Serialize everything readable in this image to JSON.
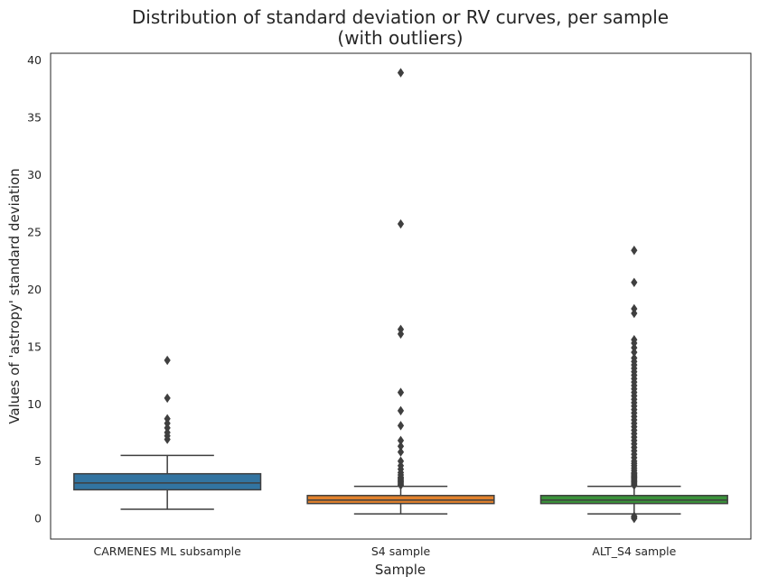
{
  "chart_data": {
    "type": "box",
    "title_line1": "Distribution of standard deviation or RV curves, per sample",
    "title_line2": "(with outliers)",
    "xlabel": "Sample",
    "ylabel": "Values of 'astropy' standard deviation",
    "ylim": [
      -1.8,
      40.6
    ],
    "yticks": [
      0,
      5,
      10,
      15,
      20,
      25,
      30,
      35,
      40
    ],
    "grid": false,
    "categories": [
      "CARMENES ML subsample",
      "S4 sample",
      "ALT_S4 sample"
    ],
    "colors": [
      "#3274a1",
      "#e1812c",
      "#3a923a"
    ],
    "boxes": [
      {
        "category": "CARMENES ML subsample",
        "whisker_low": 0.8,
        "q1": 2.5,
        "median": 3.1,
        "q3": 3.9,
        "whisker_high": 5.5,
        "outliers": [
          6.9,
          7.2,
          7.5,
          7.9,
          8.3,
          8.7,
          10.5,
          13.8
        ]
      },
      {
        "category": "S4 sample",
        "whisker_low": 0.4,
        "q1": 1.3,
        "median": 1.6,
        "q3": 2.0,
        "whisker_high": 2.8,
        "outliers": [
          2.9,
          3.0,
          3.1,
          3.2,
          3.3,
          3.4,
          3.5,
          3.6,
          3.8,
          4.0,
          4.3,
          4.6,
          5.0,
          5.8,
          6.3,
          6.8,
          8.1,
          9.4,
          11.0,
          16.1,
          16.5,
          25.7,
          38.9
        ]
      },
      {
        "category": "ALT_S4 sample",
        "whisker_low": 0.4,
        "q1": 1.3,
        "median": 1.6,
        "q3": 2.0,
        "whisker_high": 2.8,
        "outliers": [
          0.0,
          0.1,
          0.2,
          2.9,
          3.0,
          3.1,
          3.2,
          3.3,
          3.4,
          3.5,
          3.6,
          3.7,
          3.8,
          3.9,
          4.0,
          4.2,
          4.4,
          4.6,
          4.8,
          5.0,
          5.3,
          5.6,
          5.9,
          6.2,
          6.5,
          6.8,
          7.1,
          7.4,
          7.7,
          8.0,
          8.3,
          8.6,
          8.9,
          9.2,
          9.5,
          9.8,
          10.1,
          10.4,
          10.7,
          11.0,
          11.3,
          11.6,
          11.9,
          12.2,
          12.5,
          12.8,
          13.1,
          13.4,
          13.7,
          14.0,
          14.5,
          14.9,
          15.3,
          15.6,
          17.9,
          18.3,
          20.6,
          23.4
        ]
      }
    ]
  }
}
